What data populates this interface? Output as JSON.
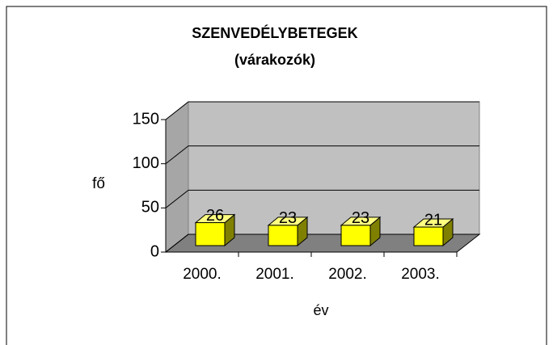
{
  "chart_data": {
    "type": "bar3d",
    "title": "SZENVEDÉLYBETEGEK",
    "subtitle": "(várakozók)",
    "categories": [
      "2000.",
      "2001.",
      "2002.",
      "2003."
    ],
    "values": [
      26,
      23,
      23,
      21
    ],
    "color": "#ffff00",
    "xlabel": "év",
    "ylabel": "fő",
    "ylim": [
      0,
      150
    ],
    "yticks": [
      0,
      50,
      100,
      150
    ],
    "grid": true
  }
}
